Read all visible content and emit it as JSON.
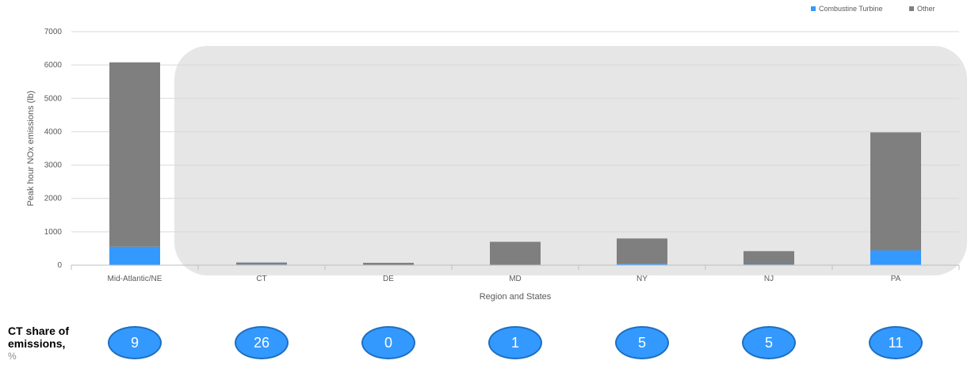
{
  "chart_data": {
    "type": "bar",
    "stacked": true,
    "categories": [
      "Mid-Atlantic/NE",
      "CT",
      "DE",
      "MD",
      "NY",
      "NJ",
      "PA"
    ],
    "series": [
      {
        "name": "Combustine Turbine",
        "color": "#3399ff",
        "values": [
          550,
          20,
          0,
          7,
          40,
          20,
          440
        ]
      },
      {
        "name": "Other",
        "color": "#7f7f7f",
        "values": [
          5530,
          60,
          70,
          693,
          760,
          400,
          3540
        ]
      }
    ],
    "xlabel": "Region and States",
    "ylabel": "Peak hour NOx emissions (lb)",
    "ylim": [
      0,
      7000
    ],
    "yticks": [
      0,
      1000,
      2000,
      3000,
      4000,
      5000,
      6000,
      7000
    ],
    "grid": true,
    "legend": "top-right",
    "highlight_region_color": "#e6e6e6"
  },
  "ct_share": {
    "title": "CT share of emissions,",
    "unit": "%",
    "values": [
      "9",
      "26",
      "0",
      "1",
      "5",
      "5",
      "11"
    ]
  }
}
